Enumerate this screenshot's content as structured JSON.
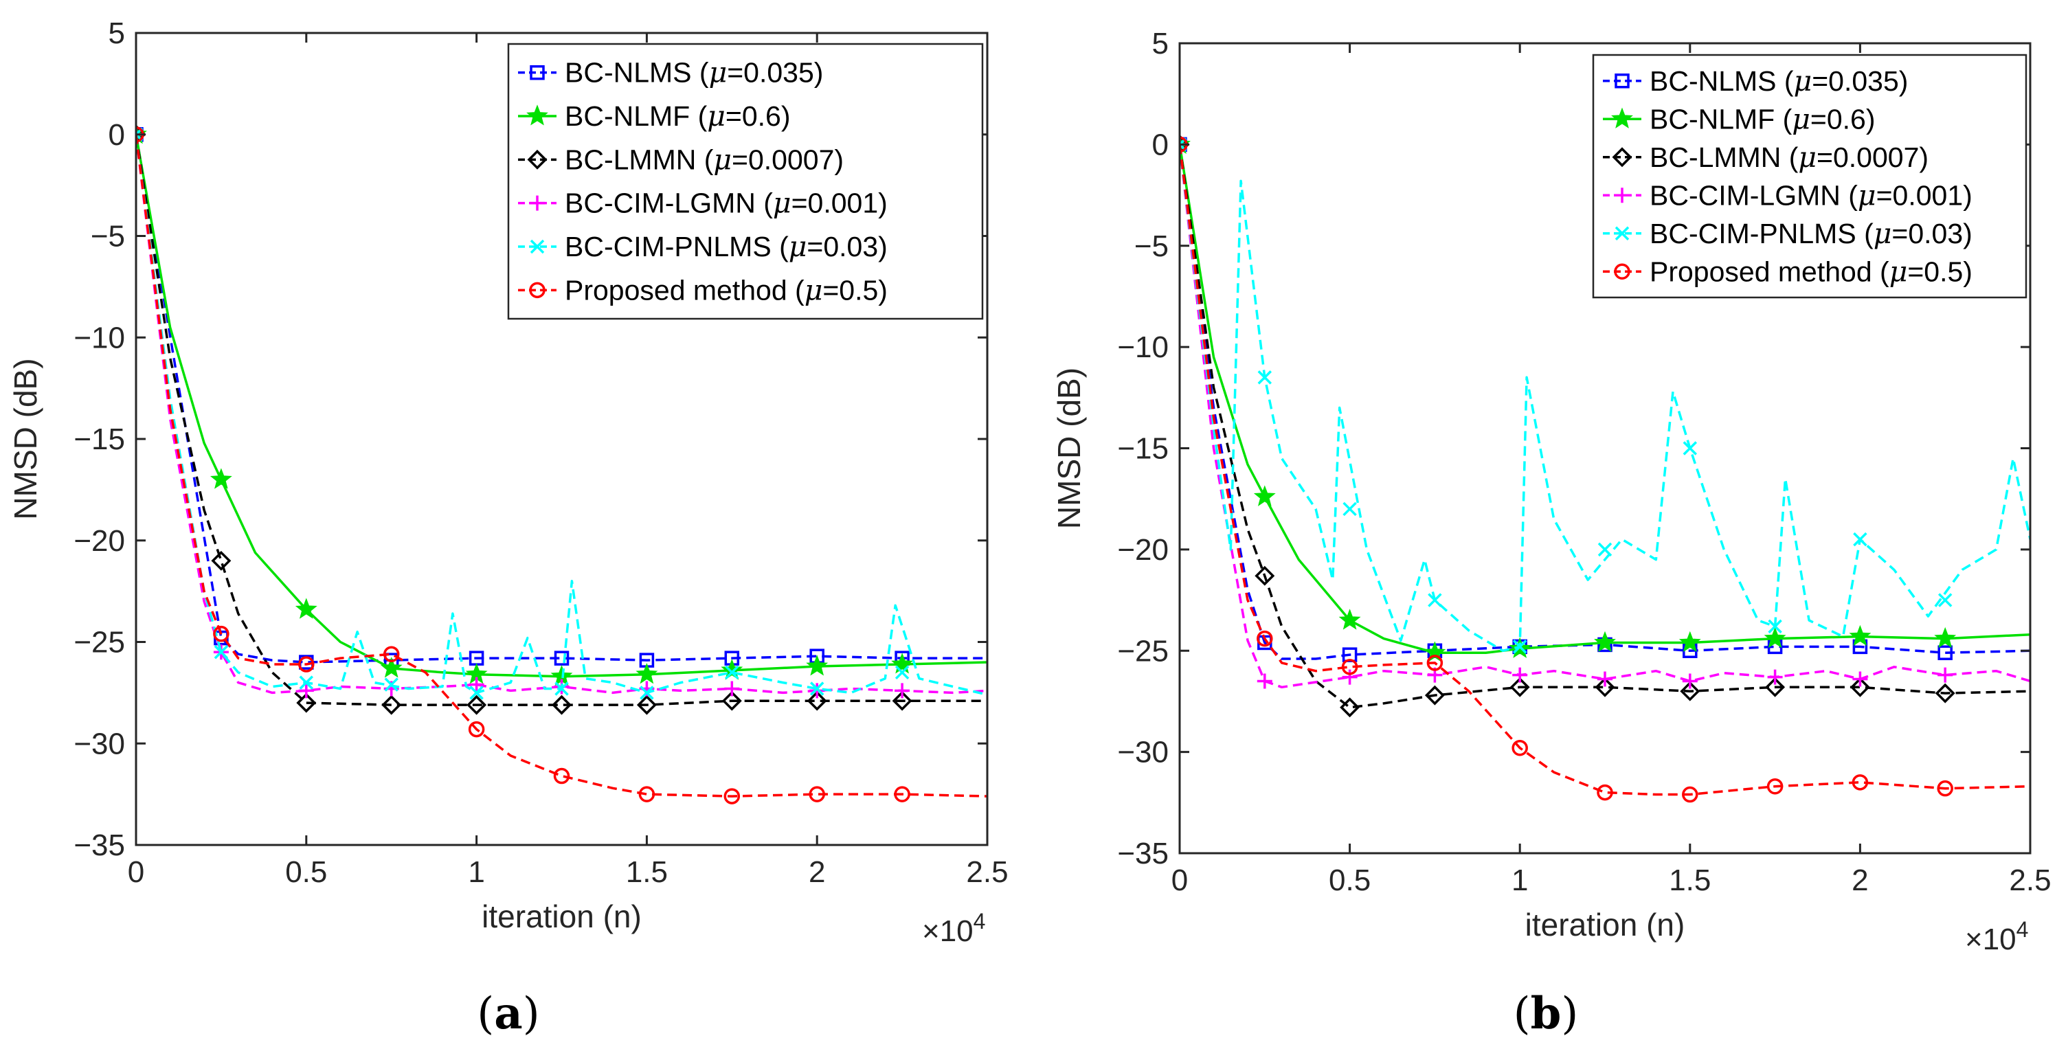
{
  "figure": {
    "panels": [
      "a",
      "b"
    ]
  },
  "chart_data": [
    {
      "type": "line",
      "caption": "(a)",
      "caption_parts": {
        "open": "(",
        "letter": "a",
        "close": ")"
      },
      "xlabel": "iteration (n)",
      "ylabel": "NMSD (dB)",
      "x_multiplier": "×10",
      "x_multiplier_exp": "4",
      "xlim": [
        0,
        2.5
      ],
      "ylim": [
        -35,
        5
      ],
      "xticks": [
        0,
        0.5,
        1,
        1.5,
        2,
        2.5
      ],
      "xtick_labels": [
        "0",
        "0.5",
        "1",
        "1.5",
        "2",
        "2.5"
      ],
      "yticks": [
        5,
        0,
        -5,
        -10,
        -15,
        -20,
        -25,
        -30,
        -35
      ],
      "ytick_labels": [
        "5",
        "0",
        "−5",
        "−10",
        "−15",
        "−20",
        "−25",
        "−30",
        "−35"
      ],
      "legend_position": "top-right",
      "series": [
        {
          "name": "BC-NLMS",
          "mu_label": "μ",
          "mu_value": "=0.035",
          "close": ")",
          "color": "#0000ff",
          "dash": "dashed",
          "marker": "square",
          "x": [
            0,
            0.25,
            0.3,
            0.4,
            0.5,
            0.75,
            1.0,
            1.25,
            1.5,
            1.75,
            2.0,
            2.25,
            2.5
          ],
          "y": [
            0,
            -24.8,
            -25.6,
            -25.9,
            -26.0,
            -25.9,
            -25.8,
            -25.8,
            -25.9,
            -25.8,
            -25.7,
            -25.8,
            -25.8
          ],
          "marker_x": [
            0,
            0.25,
            0.5,
            0.75,
            1.0,
            1.25,
            1.5,
            1.75,
            2.0,
            2.25
          ],
          "marker_y": [
            0,
            -24.8,
            -26.0,
            -25.9,
            -25.8,
            -25.8,
            -25.9,
            -25.8,
            -25.7,
            -25.8
          ]
        },
        {
          "name": "BC-NLMF",
          "mu_label": "μ",
          "mu_value": "=0.6",
          "close": ")",
          "color": "#00e000",
          "dash": "solid",
          "marker": "star",
          "x": [
            0,
            0.1,
            0.2,
            0.25,
            0.35,
            0.5,
            0.6,
            0.75,
            0.9,
            1.0,
            1.25,
            1.5,
            1.75,
            2.0,
            2.25,
            2.5
          ],
          "y": [
            0,
            -9.5,
            -15.2,
            -17.0,
            -20.6,
            -23.4,
            -25.0,
            -26.3,
            -26.5,
            -26.6,
            -26.7,
            -26.6,
            -26.4,
            -26.2,
            -26.1,
            -26.0
          ],
          "marker_x": [
            0,
            0.25,
            0.5,
            0.75,
            1.0,
            1.25,
            1.5,
            1.75,
            2.0,
            2.25
          ],
          "marker_y": [
            0,
            -17.0,
            -23.4,
            -26.3,
            -26.6,
            -26.7,
            -26.6,
            -26.4,
            -26.2,
            -26.1
          ]
        },
        {
          "name": "BC-LMMN",
          "mu_label": "μ",
          "mu_value": "=0.0007",
          "close": ")",
          "color": "#000000",
          "dash": "dashed",
          "marker": "diamond",
          "x": [
            0,
            0.1,
            0.2,
            0.25,
            0.3,
            0.4,
            0.5,
            0.75,
            1.0,
            1.25,
            1.5,
            1.75,
            2.0,
            2.25,
            2.5
          ],
          "y": [
            0,
            -11.0,
            -18.5,
            -21.0,
            -23.6,
            -26.5,
            -28.0,
            -28.1,
            -28.1,
            -28.1,
            -28.1,
            -27.9,
            -27.9,
            -27.9,
            -27.9
          ],
          "marker_x": [
            0,
            0.25,
            0.5,
            0.75,
            1.0,
            1.25,
            1.5,
            1.75,
            2.0,
            2.25
          ],
          "marker_y": [
            0,
            -21.0,
            -28.0,
            -28.1,
            -28.1,
            -28.1,
            -28.1,
            -27.9,
            -27.9,
            -27.9
          ]
        },
        {
          "name": "BC-CIM-LGMN",
          "mu_label": "μ",
          "mu_value": "=0.001",
          "close": ")",
          "color": "#ff00ff",
          "dash": "dashed",
          "marker": "plus",
          "x": [
            0,
            0.1,
            0.2,
            0.25,
            0.3,
            0.4,
            0.5,
            0.6,
            0.75,
            0.9,
            1.0,
            1.1,
            1.25,
            1.4,
            1.5,
            1.6,
            1.75,
            1.9,
            2.0,
            2.1,
            2.25,
            2.4,
            2.5
          ],
          "y": [
            0,
            -14.0,
            -23.0,
            -25.5,
            -27.0,
            -27.5,
            -27.4,
            -27.2,
            -27.3,
            -27.2,
            -27.1,
            -27.4,
            -27.2,
            -27.5,
            -27.3,
            -27.4,
            -27.3,
            -27.5,
            -27.4,
            -27.3,
            -27.4,
            -27.5,
            -27.4
          ],
          "marker_x": [
            0,
            0.25,
            0.5,
            0.75,
            1.0,
            1.25,
            1.5,
            1.75,
            2.0,
            2.25
          ],
          "marker_y": [
            0,
            -25.5,
            -27.4,
            -27.3,
            -27.1,
            -27.2,
            -27.3,
            -27.3,
            -27.4,
            -27.4
          ]
        },
        {
          "name": "BC-CIM-PNLMS",
          "mu_label": "μ",
          "mu_value": "=0.03",
          "close": ")",
          "color": "#00ffff",
          "dash": "dashed",
          "marker": "x",
          "x": [
            0,
            0.1,
            0.2,
            0.25,
            0.3,
            0.4,
            0.5,
            0.6,
            0.65,
            0.7,
            0.8,
            0.9,
            0.93,
            0.97,
            1.0,
            1.1,
            1.15,
            1.2,
            1.25,
            1.28,
            1.32,
            1.4,
            1.5,
            1.6,
            1.75,
            1.9,
            2.0,
            2.1,
            2.2,
            2.23,
            2.3,
            2.4,
            2.5
          ],
          "y": [
            0,
            -13.0,
            -22.5,
            -25.5,
            -26.5,
            -27.2,
            -27.0,
            -27.3,
            -24.5,
            -27.0,
            -27.3,
            -27.2,
            -23.6,
            -27.2,
            -27.5,
            -27.0,
            -24.8,
            -27.3,
            -27.3,
            -22.0,
            -26.8,
            -27.0,
            -27.5,
            -27.0,
            -26.5,
            -27.0,
            -27.3,
            -27.5,
            -26.8,
            -23.2,
            -26.8,
            -27.2,
            -27.6
          ],
          "marker_x": [
            0,
            0.25,
            0.5,
            0.75,
            1.0,
            1.25,
            1.5,
            1.75,
            2.0,
            2.25
          ],
          "marker_y": [
            0,
            -25.5,
            -27.0,
            -27.1,
            -27.5,
            -27.3,
            -27.5,
            -26.5,
            -27.3,
            -26.5
          ]
        },
        {
          "name": "Proposed method",
          "mu_label": "μ",
          "mu_value": "=0.5",
          "close": ")",
          "color": "#ff0000",
          "dash": "dashed",
          "marker": "circle",
          "x": [
            0,
            0.1,
            0.2,
            0.25,
            0.3,
            0.4,
            0.5,
            0.6,
            0.75,
            0.85,
            1.0,
            1.1,
            1.25,
            1.4,
            1.5,
            1.75,
            2.0,
            2.25,
            2.5
          ],
          "y": [
            0,
            -13.5,
            -22.5,
            -24.6,
            -25.8,
            -26.1,
            -26.1,
            -25.8,
            -25.6,
            -26.5,
            -29.3,
            -30.6,
            -31.6,
            -32.2,
            -32.5,
            -32.6,
            -32.5,
            -32.5,
            -32.6
          ],
          "marker_x": [
            0,
            0.25,
            0.5,
            0.75,
            1.0,
            1.25,
            1.5,
            1.75,
            2.0,
            2.25
          ],
          "marker_y": [
            0,
            -24.6,
            -26.1,
            -25.6,
            -29.3,
            -31.6,
            -32.5,
            -32.6,
            -32.5,
            -32.5
          ]
        }
      ]
    },
    {
      "type": "line",
      "caption": "(b)",
      "caption_parts": {
        "open": "(",
        "letter": "b",
        "close": ")"
      },
      "xlabel": "iteration (n)",
      "ylabel": "NMSD (dB)",
      "x_multiplier": "×10",
      "x_multiplier_exp": "4",
      "xlim": [
        0,
        2.5
      ],
      "ylim": [
        -35,
        5
      ],
      "xticks": [
        0,
        0.5,
        1,
        1.5,
        2,
        2.5
      ],
      "xtick_labels": [
        "0",
        "0.5",
        "1",
        "1.5",
        "2",
        "2.5"
      ],
      "yticks": [
        5,
        0,
        -5,
        -10,
        -15,
        -20,
        -25,
        -30,
        -35
      ],
      "ytick_labels": [
        "5",
        "0",
        "−5",
        "−10",
        "−15",
        "−20",
        "−25",
        "−30",
        "−35"
      ],
      "legend_position": "top-right",
      "series": [
        {
          "name": "BC-NLMS",
          "mu_label": "μ",
          "mu_value": "=0.035",
          "close": ")",
          "color": "#0000ff",
          "dash": "dashed",
          "marker": "square",
          "x": [
            0,
            0.1,
            0.2,
            0.25,
            0.3,
            0.4,
            0.5,
            0.75,
            1.0,
            1.25,
            1.5,
            1.75,
            2.0,
            2.25,
            2.5
          ],
          "y": [
            0,
            -13.0,
            -22.0,
            -24.6,
            -25.4,
            -25.4,
            -25.2,
            -25.0,
            -24.8,
            -24.7,
            -25.0,
            -24.8,
            -24.8,
            -25.1,
            -25.0
          ],
          "marker_x": [
            0,
            0.25,
            0.5,
            0.75,
            1.0,
            1.25,
            1.5,
            1.75,
            2.0,
            2.25
          ],
          "marker_y": [
            0,
            -24.6,
            -25.2,
            -25.0,
            -24.8,
            -24.7,
            -25.0,
            -24.8,
            -24.8,
            -25.1
          ]
        },
        {
          "name": "BC-NLMF",
          "mu_label": "μ",
          "mu_value": "=0.6",
          "close": ")",
          "color": "#00e000",
          "dash": "solid",
          "marker": "star",
          "x": [
            0,
            0.1,
            0.2,
            0.25,
            0.35,
            0.5,
            0.6,
            0.75,
            0.9,
            1.0,
            1.25,
            1.5,
            1.75,
            2.0,
            2.25,
            2.5
          ],
          "y": [
            0,
            -10.5,
            -15.8,
            -17.4,
            -20.5,
            -23.5,
            -24.4,
            -25.1,
            -25.1,
            -24.9,
            -24.6,
            -24.6,
            -24.4,
            -24.3,
            -24.4,
            -24.2
          ],
          "marker_x": [
            0,
            0.25,
            0.5,
            0.75,
            1.0,
            1.25,
            1.5,
            1.75,
            2.0,
            2.25
          ],
          "marker_y": [
            0,
            -17.4,
            -23.5,
            -25.1,
            -24.9,
            -24.6,
            -24.6,
            -24.4,
            -24.3,
            -24.4
          ]
        },
        {
          "name": "BC-LMMN",
          "mu_label": "μ",
          "mu_value": "=0.0007",
          "close": ")",
          "color": "#000000",
          "dash": "dashed",
          "marker": "diamond",
          "x": [
            0,
            0.1,
            0.2,
            0.25,
            0.3,
            0.4,
            0.5,
            0.6,
            0.75,
            1.0,
            1.25,
            1.5,
            1.75,
            2.0,
            2.25,
            2.5
          ],
          "y": [
            0,
            -12.0,
            -19.0,
            -21.3,
            -23.8,
            -26.5,
            -27.8,
            -27.6,
            -27.2,
            -26.8,
            -26.8,
            -27.0,
            -26.8,
            -26.8,
            -27.1,
            -27.0
          ],
          "marker_x": [
            0,
            0.25,
            0.5,
            0.75,
            1.0,
            1.25,
            1.5,
            1.75,
            2.0,
            2.25
          ],
          "marker_y": [
            0,
            -21.3,
            -27.8,
            -27.2,
            -26.8,
            -26.8,
            -27.0,
            -26.8,
            -26.8,
            -27.1
          ]
        },
        {
          "name": "BC-CIM-LGMN",
          "mu_label": "μ",
          "mu_value": "=0.001",
          "close": ")",
          "color": "#ff00ff",
          "dash": "dashed",
          "marker": "plus",
          "x": [
            0,
            0.1,
            0.2,
            0.25,
            0.3,
            0.5,
            0.6,
            0.75,
            0.9,
            1.0,
            1.1,
            1.25,
            1.4,
            1.5,
            1.6,
            1.75,
            1.9,
            2.0,
            2.1,
            2.25,
            2.4,
            2.5
          ],
          "y": [
            0,
            -15.0,
            -24.5,
            -26.5,
            -26.8,
            -26.3,
            -26.0,
            -26.2,
            -25.8,
            -26.2,
            -26.0,
            -26.4,
            -26.0,
            -26.5,
            -26.1,
            -26.3,
            -26.0,
            -26.4,
            -25.8,
            -26.2,
            -26.0,
            -26.5
          ],
          "marker_x": [
            0,
            0.25,
            0.5,
            0.75,
            1.0,
            1.25,
            1.5,
            1.75,
            2.0,
            2.25
          ],
          "marker_y": [
            0,
            -26.5,
            -26.3,
            -26.2,
            -26.2,
            -26.4,
            -26.5,
            -26.3,
            -26.4,
            -26.2
          ]
        },
        {
          "name": "BC-CIM-PNLMS",
          "mu_label": "μ",
          "mu_value": "=0.03",
          "close": ")",
          "color": "#00ffff",
          "dash": "dashed",
          "marker": "x",
          "x": [
            0,
            0.1,
            0.15,
            0.18,
            0.25,
            0.3,
            0.4,
            0.45,
            0.47,
            0.55,
            0.65,
            0.72,
            0.75,
            0.85,
            0.95,
            1.0,
            1.02,
            1.1,
            1.2,
            1.3,
            1.4,
            1.45,
            1.5,
            1.6,
            1.7,
            1.75,
            1.78,
            1.85,
            1.95,
            2.0,
            2.1,
            2.2,
            2.3,
            2.4,
            2.45,
            2.5
          ],
          "y": [
            0,
            -14.0,
            -20.0,
            -1.8,
            -11.5,
            -15.5,
            -18.0,
            -21.5,
            -13.0,
            -20.0,
            -24.5,
            -20.5,
            -22.5,
            -24.0,
            -25.0,
            -24.8,
            -11.5,
            -18.5,
            -21.5,
            -19.5,
            -20.5,
            -12.2,
            -15.0,
            -20.0,
            -23.5,
            -23.8,
            -16.5,
            -23.5,
            -24.3,
            -19.5,
            -21.0,
            -23.3,
            -21.0,
            -20.0,
            -15.5,
            -19.5
          ],
          "marker_x": [
            0,
            0.25,
            0.5,
            0.75,
            1.0,
            1.25,
            1.5,
            1.75,
            2.0,
            2.25
          ],
          "marker_y": [
            0,
            -11.5,
            -18.0,
            -22.5,
            -24.8,
            -20.0,
            -15.0,
            -23.8,
            -19.5,
            -22.5
          ]
        },
        {
          "name": "Proposed method",
          "mu_label": "μ",
          "mu_value": "=0.5",
          "close": ")",
          "color": "#ff0000",
          "dash": "dashed",
          "marker": "circle",
          "x": [
            0,
            0.1,
            0.2,
            0.25,
            0.3,
            0.4,
            0.5,
            0.6,
            0.75,
            0.85,
            1.0,
            1.1,
            1.25,
            1.4,
            1.5,
            1.75,
            2.0,
            2.25,
            2.5
          ],
          "y": [
            0,
            -13.5,
            -22.5,
            -24.4,
            -25.6,
            -26.0,
            -25.8,
            -25.7,
            -25.6,
            -27.0,
            -29.8,
            -31.0,
            -32.0,
            -32.1,
            -32.1,
            -31.7,
            -31.5,
            -31.8,
            -31.7
          ],
          "marker_x": [
            0,
            0.25,
            0.5,
            0.75,
            1.0,
            1.25,
            1.5,
            1.75,
            2.0,
            2.25
          ],
          "marker_y": [
            0,
            -24.4,
            -25.8,
            -25.6,
            -29.8,
            -32.0,
            -32.1,
            -31.7,
            -31.5,
            -31.8
          ]
        }
      ]
    }
  ]
}
